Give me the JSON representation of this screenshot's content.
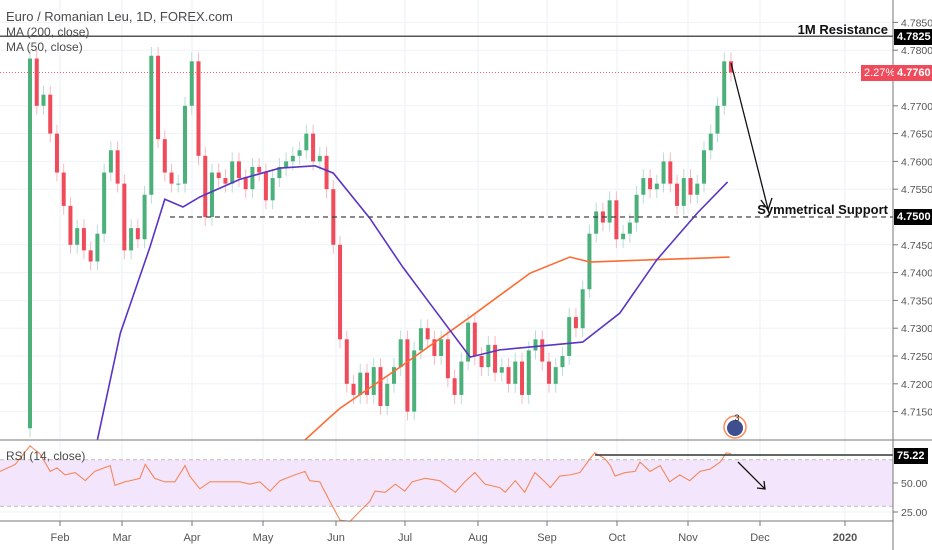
{
  "legend": {
    "title": "Euro / Romanian Leu, 1D, FOREX.com",
    "ma200": "MA (200, close)",
    "ma50": "MA (50, close)",
    "rsi": "RSI (14, close)"
  },
  "annotations": {
    "resistance_label": "1M Resistance",
    "resistance_value": "4.7825",
    "support_label": "Symmetrical Support",
    "support_value": "4.7500",
    "last_change": "2.27%",
    "last_price": "4.7760",
    "rsi_value": "75.22",
    "event_badge": "3"
  },
  "colors": {
    "up": "#4cb07a",
    "down": "#ef4b5b",
    "ma50": "#5a34c4",
    "ma200": "#ff6a32",
    "rsi": "#f5875a",
    "rsi_band": "#f3e6fc",
    "tag_dark": "#000000",
    "tag_red": "#ef4b5b"
  },
  "chart_data": [
    {
      "type": "candlestick",
      "title": "Euro / Romanian Leu, 1D, FOREX.com",
      "ylim": [
        4.71,
        4.787
      ],
      "y_ticks": [
        "4.7850",
        "4.7800",
        "4.7700",
        "4.7650",
        "4.7600",
        "4.7550",
        "4.7450",
        "4.7400",
        "4.7350",
        "4.7300",
        "4.7250",
        "4.7200",
        "4.7150"
      ],
      "x_ticks": [
        "Feb",
        "Mar",
        "Apr",
        "May",
        "Jun",
        "Jul",
        "Aug",
        "Sep",
        "Oct",
        "Nov",
        "Dec",
        "2020"
      ],
      "first_open": 4.712,
      "closes": [
        4.7785,
        4.77,
        4.772,
        4.765,
        4.758,
        4.752,
        4.745,
        4.748,
        4.744,
        4.742,
        4.747,
        4.758,
        4.762,
        4.756,
        4.744,
        4.748,
        4.746,
        4.754,
        4.779,
        4.764,
        4.758,
        4.756,
        4.756,
        4.77,
        4.778,
        4.761,
        4.75,
        4.758,
        4.757,
        4.756,
        4.76,
        4.757,
        4.755,
        4.759,
        4.758,
        4.753,
        4.757,
        4.759,
        4.76,
        4.761,
        4.762,
        4.765,
        4.76,
        4.761,
        4.755,
        4.745,
        4.728,
        4.72,
        4.718,
        4.722,
        4.718,
        4.723,
        4.716,
        4.72,
        4.723,
        4.728,
        4.715,
        4.726,
        4.73,
        4.728,
        4.725,
        4.728,
        4.721,
        4.718,
        4.724,
        4.731,
        4.725,
        4.723,
        4.727,
        4.722,
        4.723,
        4.72,
        4.724,
        4.718,
        4.726,
        4.728,
        4.724,
        4.72,
        4.723,
        4.725,
        4.732,
        4.73,
        4.737,
        4.747,
        4.751,
        4.749,
        4.753,
        4.746,
        4.747,
        4.749,
        4.754,
        4.757,
        4.755,
        4.756,
        4.76,
        4.756,
        4.752,
        4.757,
        4.754,
        4.756,
        4.762,
        4.765,
        4.77,
        4.778,
        4.776
      ],
      "ma50": [
        [
          10,
          4.7099
        ],
        [
          13.4,
          4.7291
        ],
        [
          17.8,
          4.7446
        ],
        [
          20,
          4.7532
        ],
        [
          22.7,
          4.7518
        ],
        [
          25.2,
          4.7536
        ],
        [
          31.2,
          4.7568
        ],
        [
          37.1,
          4.7588
        ],
        [
          42.3,
          4.7592
        ],
        [
          45,
          4.7579
        ],
        [
          50.4,
          4.7498
        ],
        [
          55.3,
          4.741
        ],
        [
          59.3,
          4.7345
        ],
        [
          65.3,
          4.7248
        ],
        [
          69.7,
          4.7261
        ],
        [
          82,
          4.7275
        ],
        [
          87.5,
          4.7327
        ],
        [
          93,
          4.7423
        ],
        [
          99,
          4.7507
        ],
        [
          103.5,
          4.7563
        ]
      ],
      "ma200": [
        [
          40.8,
          4.7099
        ],
        [
          44.5,
          4.714
        ],
        [
          46,
          4.7156
        ],
        [
          54.9,
          4.723
        ],
        [
          65.3,
          4.732
        ],
        [
          74.2,
          4.7399
        ],
        [
          80.1,
          4.7428
        ],
        [
          83.1,
          4.7419
        ],
        [
          92,
          4.7423
        ],
        [
          99.4,
          4.7426
        ],
        [
          103.8,
          4.7428
        ]
      ],
      "horizontal_lines": [
        {
          "label": "1M Resistance",
          "value": 4.7825,
          "style": "solid"
        },
        {
          "label": "Symmetrical Support",
          "value": 4.75,
          "style": "dashed"
        },
        {
          "label": "last price",
          "value": 4.776,
          "style": "dotted"
        }
      ]
    },
    {
      "type": "line",
      "title": "RSI (14, close)",
      "ylim": [
        15,
        85
      ],
      "y_ticks": [
        "50.00",
        "25.00"
      ],
      "bands": [
        30,
        70
      ],
      "last": 75.22,
      "points": [
        [
          -4.5,
          60
        ],
        [
          -2.2,
          66
        ],
        [
          0,
          82
        ],
        [
          1.5,
          75
        ],
        [
          3,
          60
        ],
        [
          4,
          63
        ],
        [
          5.2,
          57
        ],
        [
          6.7,
          59
        ],
        [
          8.2,
          52
        ],
        [
          9.6,
          60
        ],
        [
          11.9,
          65
        ],
        [
          12.6,
          48
        ],
        [
          14.1,
          51
        ],
        [
          16.3,
          54
        ],
        [
          17.1,
          66
        ],
        [
          18.5,
          54
        ],
        [
          20,
          51
        ],
        [
          21.5,
          51
        ],
        [
          23,
          65
        ],
        [
          23.7,
          56
        ],
        [
          25.2,
          45
        ],
        [
          26.7,
          51
        ],
        [
          28.9,
          51
        ],
        [
          31.2,
          51
        ],
        [
          32.6,
          49
        ],
        [
          34.1,
          51
        ],
        [
          35.6,
          43
        ],
        [
          37.1,
          52
        ],
        [
          39.3,
          57
        ],
        [
          40.8,
          60
        ],
        [
          41.5,
          52
        ],
        [
          43,
          51
        ],
        [
          44.5,
          34
        ],
        [
          46,
          18
        ],
        [
          47.5,
          17
        ],
        [
          49,
          26
        ],
        [
          50.4,
          34
        ],
        [
          51.2,
          43
        ],
        [
          52.7,
          42
        ],
        [
          54.2,
          49
        ],
        [
          55.6,
          43
        ],
        [
          56.7,
          51
        ],
        [
          58.6,
          54
        ],
        [
          60.8,
          52
        ],
        [
          63.1,
          42
        ],
        [
          64.5,
          51
        ],
        [
          66,
          59
        ],
        [
          67.5,
          49
        ],
        [
          69.7,
          46
        ],
        [
          70.5,
          42
        ],
        [
          72,
          52
        ],
        [
          73.4,
          42
        ],
        [
          74.9,
          59
        ],
        [
          76.4,
          51
        ],
        [
          77.2,
          46
        ],
        [
          78.6,
          56
        ],
        [
          80.1,
          57
        ],
        [
          81.6,
          59
        ],
        [
          83.1,
          71
        ],
        [
          83.8,
          76
        ],
        [
          85.3,
          71
        ],
        [
          86.1,
          65
        ],
        [
          86.8,
          56
        ],
        [
          88.3,
          59
        ],
        [
          89.8,
          60
        ],
        [
          90.5,
          68
        ],
        [
          92,
          60
        ],
        [
          93.5,
          65
        ],
        [
          94.9,
          51
        ],
        [
          96.4,
          57
        ],
        [
          97.9,
          52
        ],
        [
          99.4,
          60
        ],
        [
          100.9,
          62
        ],
        [
          102.4,
          68
        ],
        [
          103.3,
          76
        ],
        [
          104,
          75.22
        ]
      ]
    }
  ]
}
